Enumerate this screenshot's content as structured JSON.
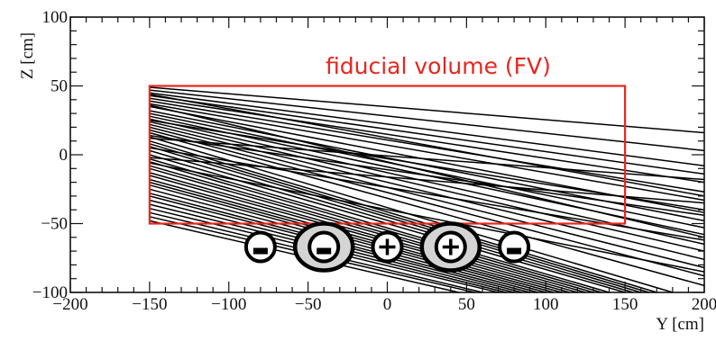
{
  "chart_data": {
    "type": "line",
    "title": "",
    "xlabel": "Y [cm]",
    "ylabel": "Z [cm]",
    "xlim": [
      -200,
      200
    ],
    "ylim": [
      -100,
      100
    ],
    "x_ticks": [
      -200,
      -150,
      -100,
      -50,
      0,
      50,
      100,
      150,
      200
    ],
    "y_ticks": [
      -100,
      -50,
      0,
      50,
      100
    ],
    "x_tick_labels": [
      "−200",
      "−150",
      "−100",
      "−50",
      "0",
      "50",
      "100",
      "150",
      "200"
    ],
    "y_tick_labels": [
      "−100",
      "−50",
      "0",
      "50",
      "100"
    ],
    "tracks": [
      [
        [
          -150,
          49
        ],
        [
          200,
          16
        ]
      ],
      [
        [
          -150,
          47
        ],
        [
          200,
          3
        ]
      ],
      [
        [
          -150,
          45
        ],
        [
          200,
          -8
        ]
      ],
      [
        [
          -150,
          43
        ],
        [
          200,
          -14
        ]
      ],
      [
        [
          -150,
          41
        ],
        [
          200,
          -20
        ]
      ],
      [
        [
          -150,
          39
        ],
        [
          200,
          -27
        ]
      ],
      [
        [
          -150,
          37
        ],
        [
          200,
          -33
        ]
      ],
      [
        [
          -150,
          35
        ],
        [
          200,
          -42
        ]
      ],
      [
        [
          -150,
          32
        ],
        [
          200,
          -48
        ]
      ],
      [
        [
          -150,
          30
        ],
        [
          200,
          -53
        ]
      ],
      [
        [
          -150,
          28
        ],
        [
          200,
          -58
        ]
      ],
      [
        [
          -150,
          26
        ],
        [
          200,
          -65
        ]
      ],
      [
        [
          -150,
          24
        ],
        [
          200,
          -70
        ]
      ],
      [
        [
          -150,
          22
        ],
        [
          200,
          -76
        ]
      ],
      [
        [
          -150,
          20
        ],
        [
          200,
          -82
        ]
      ],
      [
        [
          -150,
          18
        ],
        [
          200,
          -88
        ]
      ],
      [
        [
          -150,
          16
        ],
        [
          200,
          -95
        ]
      ],
      [
        [
          -150,
          13
        ],
        [
          180,
          -100
        ]
      ],
      [
        [
          -150,
          10
        ],
        [
          170,
          -100
        ]
      ],
      [
        [
          -150,
          8
        ],
        [
          165,
          -100
        ]
      ],
      [
        [
          -150,
          6
        ],
        [
          160,
          -100
        ]
      ],
      [
        [
          -150,
          3
        ],
        [
          155,
          -100
        ]
      ],
      [
        [
          -150,
          0
        ],
        [
          150,
          -100
        ]
      ],
      [
        [
          -150,
          -3
        ],
        [
          140,
          -100
        ]
      ],
      [
        [
          -150,
          -5
        ],
        [
          135,
          -100
        ]
      ],
      [
        [
          -150,
          -8
        ],
        [
          130,
          -100
        ]
      ],
      [
        [
          -150,
          -10
        ],
        [
          125,
          -100
        ]
      ],
      [
        [
          -150,
          -13
        ],
        [
          120,
          -100
        ]
      ],
      [
        [
          -150,
          -15
        ],
        [
          115,
          -100
        ]
      ],
      [
        [
          -150,
          -18
        ],
        [
          110,
          -100
        ]
      ],
      [
        [
          -150,
          -20
        ],
        [
          105,
          -100
        ]
      ],
      [
        [
          -150,
          -22
        ],
        [
          100,
          -100
        ]
      ],
      [
        [
          -150,
          -25
        ],
        [
          95,
          -100
        ]
      ],
      [
        [
          -150,
          -28
        ],
        [
          90,
          -100
        ]
      ],
      [
        [
          -150,
          -30
        ],
        [
          85,
          -100
        ]
      ],
      [
        [
          -150,
          -33
        ],
        [
          80,
          -100
        ]
      ],
      [
        [
          -150,
          -36
        ],
        [
          75,
          -100
        ]
      ],
      [
        [
          -150,
          -39
        ],
        [
          70,
          -100
        ]
      ],
      [
        [
          -150,
          -42
        ],
        [
          60,
          -100
        ]
      ],
      [
        [
          -150,
          -45
        ],
        [
          55,
          -100
        ]
      ],
      [
        [
          -150,
          -48
        ],
        [
          45,
          -100
        ]
      ],
      [
        [
          -150,
          36
        ],
        [
          200,
          -60
        ]
      ],
      [
        [
          -150,
          25
        ],
        [
          200,
          -40
        ]
      ],
      [
        [
          -150,
          14
        ],
        [
          200,
          -44
        ]
      ],
      [
        [
          -150,
          5
        ],
        [
          200,
          -62
        ]
      ],
      [
        [
          -150,
          -6
        ],
        [
          200,
          -85
        ]
      ],
      [
        [
          -150,
          44
        ],
        [
          200,
          -30
        ]
      ],
      [
        [
          -150,
          12
        ],
        [
          200,
          -18
        ]
      ],
      [
        [
          -150,
          -2
        ],
        [
          200,
          -35
        ]
      ]
    ],
    "fiducial_volume": {
      "label": "fiducial volume (FV)",
      "y_range": [
        -150,
        150
      ],
      "z_range": [
        -50,
        50
      ],
      "color": "#e8261f"
    },
    "charge_markers": [
      {
        "y": -80,
        "z": -67,
        "sign": "−",
        "highlight": false
      },
      {
        "y": -40,
        "z": -67,
        "sign": "−",
        "highlight": true
      },
      {
        "y": 0,
        "z": -67,
        "sign": "+",
        "highlight": false
      },
      {
        "y": 40,
        "z": -67,
        "sign": "+",
        "highlight": true
      },
      {
        "y": 80,
        "z": -67,
        "sign": "−",
        "highlight": false
      }
    ]
  }
}
